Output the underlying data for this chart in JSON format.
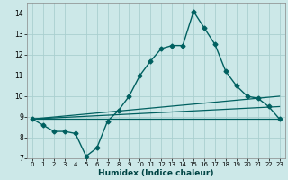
{
  "title": "",
  "xlabel": "Humidex (Indice chaleur)",
  "xlim": [
    -0.5,
    23.5
  ],
  "ylim": [
    7,
    14.5
  ],
  "yticks": [
    7,
    8,
    9,
    10,
    11,
    12,
    13,
    14
  ],
  "xticks": [
    0,
    1,
    2,
    3,
    4,
    5,
    6,
    7,
    8,
    9,
    10,
    11,
    12,
    13,
    14,
    15,
    16,
    17,
    18,
    19,
    20,
    21,
    22,
    23
  ],
  "bg_color": "#cce8e8",
  "grid_color": "#aacfcf",
  "line_color": "#006060",
  "line1_x": [
    0,
    1,
    2,
    3,
    4,
    5,
    6,
    7,
    8,
    9,
    10,
    11,
    12,
    13,
    14,
    15,
    16,
    17,
    18,
    19,
    20,
    21,
    22,
    23
  ],
  "line1_y": [
    8.9,
    8.6,
    8.3,
    8.3,
    8.2,
    7.1,
    7.5,
    8.8,
    9.3,
    10.0,
    11.0,
    11.7,
    12.3,
    12.45,
    12.45,
    14.1,
    13.3,
    12.5,
    11.2,
    10.5,
    10.0,
    9.9,
    9.5,
    8.9
  ],
  "line2_x": [
    0,
    23
  ],
  "line2_y": [
    8.9,
    10.0
  ],
  "line3_x": [
    0,
    23
  ],
  "line3_y": [
    8.9,
    9.5
  ],
  "line4_x": [
    0,
    23
  ],
  "line4_y": [
    8.9,
    8.9
  ]
}
